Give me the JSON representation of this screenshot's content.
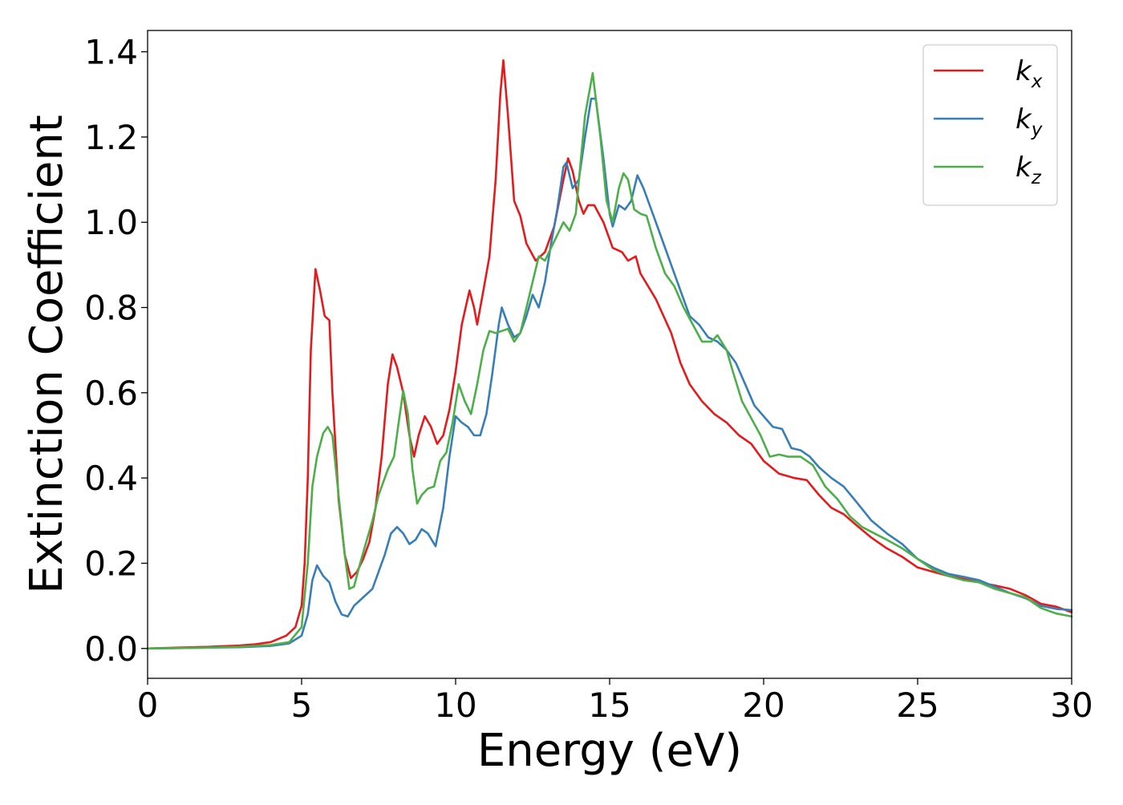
{
  "chart_data": {
    "type": "line",
    "title": "",
    "xlabel": "Energy (eV)",
    "ylabel": "Extinction Coefficient",
    "xlim": [
      0,
      30
    ],
    "ylim": [
      -0.07,
      1.45
    ],
    "xticks": [
      0,
      5,
      10,
      15,
      20,
      25,
      30
    ],
    "xtick_labels": [
      "0",
      "5",
      "10",
      "15",
      "20",
      "25",
      "30"
    ],
    "yticks": [
      0.0,
      0.2,
      0.4,
      0.6,
      0.8,
      1.0,
      1.2,
      1.4
    ],
    "ytick_labels": [
      "0.0",
      "0.2",
      "0.4",
      "0.6",
      "0.8",
      "1.0",
      "1.2",
      "1.4"
    ],
    "grid": false,
    "legend_position": "top-right",
    "series": [
      {
        "name": "k_x",
        "legend_base": "k",
        "legend_sub": "x",
        "color": "#e41a1c",
        "points": [
          [
            0,
            0.0
          ],
          [
            1,
            0.002
          ],
          [
            2,
            0.004
          ],
          [
            3,
            0.007
          ],
          [
            3.5,
            0.01
          ],
          [
            4,
            0.015
          ],
          [
            4.5,
            0.03
          ],
          [
            4.8,
            0.05
          ],
          [
            5.0,
            0.1
          ],
          [
            5.1,
            0.2
          ],
          [
            5.2,
            0.4
          ],
          [
            5.3,
            0.7
          ],
          [
            5.45,
            0.89
          ],
          [
            5.6,
            0.84
          ],
          [
            5.75,
            0.78
          ],
          [
            5.9,
            0.77
          ],
          [
            6.0,
            0.6
          ],
          [
            6.2,
            0.35
          ],
          [
            6.4,
            0.22
          ],
          [
            6.6,
            0.165
          ],
          [
            6.8,
            0.18
          ],
          [
            7.0,
            0.21
          ],
          [
            7.2,
            0.25
          ],
          [
            7.4,
            0.33
          ],
          [
            7.6,
            0.45
          ],
          [
            7.8,
            0.62
          ],
          [
            7.95,
            0.69
          ],
          [
            8.1,
            0.66
          ],
          [
            8.3,
            0.6
          ],
          [
            8.5,
            0.5
          ],
          [
            8.65,
            0.45
          ],
          [
            8.8,
            0.5
          ],
          [
            9.0,
            0.545
          ],
          [
            9.2,
            0.52
          ],
          [
            9.4,
            0.48
          ],
          [
            9.6,
            0.5
          ],
          [
            9.8,
            0.56
          ],
          [
            10.0,
            0.65
          ],
          [
            10.2,
            0.76
          ],
          [
            10.45,
            0.84
          ],
          [
            10.6,
            0.8
          ],
          [
            10.7,
            0.76
          ],
          [
            10.9,
            0.84
          ],
          [
            11.1,
            0.92
          ],
          [
            11.3,
            1.1
          ],
          [
            11.45,
            1.3
          ],
          [
            11.55,
            1.38
          ],
          [
            11.7,
            1.25
          ],
          [
            11.9,
            1.05
          ],
          [
            12.1,
            1.015
          ],
          [
            12.3,
            0.95
          ],
          [
            12.6,
            0.91
          ],
          [
            12.9,
            0.93
          ],
          [
            13.2,
            0.99
          ],
          [
            13.5,
            1.1
          ],
          [
            13.65,
            1.15
          ],
          [
            13.8,
            1.12
          ],
          [
            14.0,
            1.05
          ],
          [
            14.15,
            1.02
          ],
          [
            14.3,
            1.04
          ],
          [
            14.5,
            1.04
          ],
          [
            14.8,
            1.0
          ],
          [
            15.1,
            0.94
          ],
          [
            15.4,
            0.93
          ],
          [
            15.6,
            0.91
          ],
          [
            15.85,
            0.92
          ],
          [
            16.0,
            0.88
          ],
          [
            16.5,
            0.82
          ],
          [
            17.0,
            0.74
          ],
          [
            17.3,
            0.67
          ],
          [
            17.6,
            0.62
          ],
          [
            18.0,
            0.58
          ],
          [
            18.4,
            0.55
          ],
          [
            18.8,
            0.53
          ],
          [
            19.2,
            0.5
          ],
          [
            19.6,
            0.48
          ],
          [
            20.0,
            0.44
          ],
          [
            20.5,
            0.41
          ],
          [
            21.0,
            0.4
          ],
          [
            21.4,
            0.395
          ],
          [
            21.8,
            0.36
          ],
          [
            22.2,
            0.33
          ],
          [
            22.6,
            0.315
          ],
          [
            23.0,
            0.29
          ],
          [
            23.5,
            0.26
          ],
          [
            24.0,
            0.235
          ],
          [
            24.5,
            0.215
          ],
          [
            25.0,
            0.19
          ],
          [
            25.5,
            0.18
          ],
          [
            26.0,
            0.17
          ],
          [
            26.5,
            0.163
          ],
          [
            27.0,
            0.155
          ],
          [
            27.5,
            0.148
          ],
          [
            28.0,
            0.14
          ],
          [
            28.5,
            0.125
          ],
          [
            29.0,
            0.105
          ],
          [
            29.5,
            0.098
          ],
          [
            30.0,
            0.085
          ]
        ]
      },
      {
        "name": "k_y",
        "legend_base": "k",
        "legend_sub": "y",
        "color": "#377eb8",
        "points": [
          [
            0,
            0.0
          ],
          [
            1,
            0.001
          ],
          [
            2,
            0.002
          ],
          [
            3,
            0.003
          ],
          [
            4,
            0.006
          ],
          [
            4.6,
            0.012
          ],
          [
            5.0,
            0.03
          ],
          [
            5.2,
            0.08
          ],
          [
            5.35,
            0.16
          ],
          [
            5.5,
            0.195
          ],
          [
            5.7,
            0.17
          ],
          [
            5.9,
            0.155
          ],
          [
            6.1,
            0.11
          ],
          [
            6.3,
            0.08
          ],
          [
            6.5,
            0.075
          ],
          [
            6.7,
            0.1
          ],
          [
            7.0,
            0.12
          ],
          [
            7.3,
            0.14
          ],
          [
            7.5,
            0.18
          ],
          [
            7.7,
            0.22
          ],
          [
            7.9,
            0.27
          ],
          [
            8.1,
            0.285
          ],
          [
            8.3,
            0.27
          ],
          [
            8.5,
            0.245
          ],
          [
            8.7,
            0.255
          ],
          [
            8.9,
            0.28
          ],
          [
            9.1,
            0.27
          ],
          [
            9.35,
            0.24
          ],
          [
            9.6,
            0.33
          ],
          [
            9.8,
            0.45
          ],
          [
            10.0,
            0.545
          ],
          [
            10.2,
            0.53
          ],
          [
            10.4,
            0.52
          ],
          [
            10.6,
            0.5
          ],
          [
            10.8,
            0.5
          ],
          [
            11.0,
            0.55
          ],
          [
            11.2,
            0.65
          ],
          [
            11.4,
            0.76
          ],
          [
            11.5,
            0.8
          ],
          [
            11.7,
            0.76
          ],
          [
            11.9,
            0.73
          ],
          [
            12.1,
            0.74
          ],
          [
            12.3,
            0.78
          ],
          [
            12.5,
            0.83
          ],
          [
            12.7,
            0.8
          ],
          [
            12.9,
            0.86
          ],
          [
            13.1,
            0.95
          ],
          [
            13.3,
            1.03
          ],
          [
            13.5,
            1.13
          ],
          [
            13.6,
            1.14
          ],
          [
            13.8,
            1.08
          ],
          [
            14.0,
            1.1
          ],
          [
            14.2,
            1.2
          ],
          [
            14.4,
            1.29
          ],
          [
            14.55,
            1.29
          ],
          [
            14.8,
            1.15
          ],
          [
            15.0,
            1.02
          ],
          [
            15.1,
            0.99
          ],
          [
            15.3,
            1.04
          ],
          [
            15.5,
            1.03
          ],
          [
            15.7,
            1.05
          ],
          [
            15.9,
            1.11
          ],
          [
            16.1,
            1.08
          ],
          [
            16.4,
            1.02
          ],
          [
            16.7,
            0.96
          ],
          [
            17.0,
            0.9
          ],
          [
            17.3,
            0.84
          ],
          [
            17.6,
            0.78
          ],
          [
            17.9,
            0.76
          ],
          [
            18.2,
            0.73
          ],
          [
            18.5,
            0.72
          ],
          [
            18.8,
            0.7
          ],
          [
            19.1,
            0.67
          ],
          [
            19.4,
            0.62
          ],
          [
            19.7,
            0.57
          ],
          [
            20.0,
            0.545
          ],
          [
            20.3,
            0.52
          ],
          [
            20.6,
            0.515
          ],
          [
            20.9,
            0.47
          ],
          [
            21.2,
            0.465
          ],
          [
            21.5,
            0.45
          ],
          [
            21.8,
            0.425
          ],
          [
            22.2,
            0.4
          ],
          [
            22.6,
            0.38
          ],
          [
            23.0,
            0.345
          ],
          [
            23.5,
            0.3
          ],
          [
            24.0,
            0.27
          ],
          [
            24.5,
            0.245
          ],
          [
            25.0,
            0.21
          ],
          [
            25.5,
            0.19
          ],
          [
            26.0,
            0.175
          ],
          [
            26.5,
            0.168
          ],
          [
            27.0,
            0.16
          ],
          [
            27.5,
            0.145
          ],
          [
            28.0,
            0.13
          ],
          [
            28.5,
            0.118
          ],
          [
            29.0,
            0.1
          ],
          [
            29.5,
            0.093
          ],
          [
            30.0,
            0.09
          ]
        ]
      },
      {
        "name": "k_z",
        "legend_base": "k",
        "legend_sub": "z",
        "color": "#4daf4a",
        "points": [
          [
            0,
            0.0
          ],
          [
            1,
            0.001
          ],
          [
            2,
            0.002
          ],
          [
            3,
            0.004
          ],
          [
            4,
            0.008
          ],
          [
            4.6,
            0.015
          ],
          [
            5.0,
            0.05
          ],
          [
            5.2,
            0.2
          ],
          [
            5.35,
            0.38
          ],
          [
            5.5,
            0.45
          ],
          [
            5.7,
            0.505
          ],
          [
            5.85,
            0.52
          ],
          [
            6.0,
            0.5
          ],
          [
            6.2,
            0.36
          ],
          [
            6.4,
            0.22
          ],
          [
            6.55,
            0.14
          ],
          [
            6.7,
            0.145
          ],
          [
            6.9,
            0.2
          ],
          [
            7.1,
            0.25
          ],
          [
            7.3,
            0.3
          ],
          [
            7.5,
            0.36
          ],
          [
            7.8,
            0.42
          ],
          [
            8.0,
            0.45
          ],
          [
            8.15,
            0.53
          ],
          [
            8.3,
            0.605
          ],
          [
            8.45,
            0.55
          ],
          [
            8.6,
            0.42
          ],
          [
            8.75,
            0.34
          ],
          [
            8.9,
            0.36
          ],
          [
            9.1,
            0.375
          ],
          [
            9.3,
            0.38
          ],
          [
            9.5,
            0.44
          ],
          [
            9.7,
            0.46
          ],
          [
            9.9,
            0.53
          ],
          [
            10.1,
            0.62
          ],
          [
            10.3,
            0.58
          ],
          [
            10.5,
            0.55
          ],
          [
            10.7,
            0.62
          ],
          [
            10.9,
            0.7
          ],
          [
            11.1,
            0.745
          ],
          [
            11.3,
            0.74
          ],
          [
            11.5,
            0.745
          ],
          [
            11.7,
            0.75
          ],
          [
            11.9,
            0.72
          ],
          [
            12.1,
            0.74
          ],
          [
            12.3,
            0.8
          ],
          [
            12.5,
            0.86
          ],
          [
            12.7,
            0.92
          ],
          [
            12.9,
            0.91
          ],
          [
            13.1,
            0.94
          ],
          [
            13.3,
            0.97
          ],
          [
            13.5,
            1.0
          ],
          [
            13.7,
            0.98
          ],
          [
            13.9,
            1.02
          ],
          [
            14.2,
            1.25
          ],
          [
            14.45,
            1.35
          ],
          [
            14.7,
            1.2
          ],
          [
            14.9,
            1.05
          ],
          [
            15.1,
            1.0
          ],
          [
            15.3,
            1.08
          ],
          [
            15.45,
            1.115
          ],
          [
            15.6,
            1.1
          ],
          [
            15.8,
            1.03
          ],
          [
            16.0,
            1.02
          ],
          [
            16.2,
            1.015
          ],
          [
            16.5,
            0.94
          ],
          [
            16.8,
            0.88
          ],
          [
            17.1,
            0.85
          ],
          [
            17.4,
            0.8
          ],
          [
            17.7,
            0.76
          ],
          [
            18.0,
            0.72
          ],
          [
            18.3,
            0.72
          ],
          [
            18.5,
            0.735
          ],
          [
            18.8,
            0.7
          ],
          [
            19.0,
            0.65
          ],
          [
            19.3,
            0.58
          ],
          [
            19.6,
            0.54
          ],
          [
            19.9,
            0.5
          ],
          [
            20.2,
            0.45
          ],
          [
            20.5,
            0.455
          ],
          [
            20.8,
            0.45
          ],
          [
            21.2,
            0.45
          ],
          [
            21.6,
            0.43
          ],
          [
            22.0,
            0.38
          ],
          [
            22.4,
            0.35
          ],
          [
            22.8,
            0.31
          ],
          [
            23.2,
            0.285
          ],
          [
            23.6,
            0.27
          ],
          [
            24.0,
            0.255
          ],
          [
            24.5,
            0.235
          ],
          [
            25.0,
            0.21
          ],
          [
            25.5,
            0.185
          ],
          [
            26.0,
            0.17
          ],
          [
            26.5,
            0.16
          ],
          [
            27.0,
            0.155
          ],
          [
            27.5,
            0.14
          ],
          [
            28.0,
            0.13
          ],
          [
            28.5,
            0.12
          ],
          [
            29.0,
            0.095
          ],
          [
            29.5,
            0.082
          ],
          [
            30.0,
            0.075
          ]
        ]
      }
    ]
  }
}
